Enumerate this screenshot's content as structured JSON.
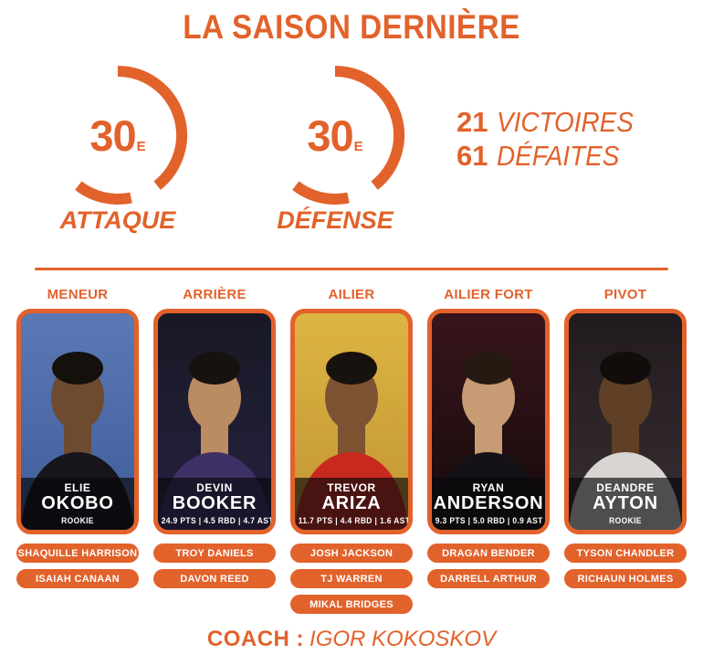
{
  "theme": {
    "orange": "#e2622b",
    "text_on_dark": "#ffffff",
    "band_overlay": "rgba(8,8,11,0.66)"
  },
  "title": "LA SAISON DERNIÈRE",
  "gauges": [
    {
      "value": "30",
      "suffix": "E",
      "label": "ATTAQUE"
    },
    {
      "value": "30",
      "suffix": "E",
      "label": "DÉFENSE"
    }
  ],
  "record": [
    {
      "number": "21",
      "label": "VICTOIRES"
    },
    {
      "number": "61",
      "label": "DÉFAITES"
    }
  ],
  "positions": [
    {
      "label": "MENEUR",
      "starter": {
        "first_name": "ELIE",
        "last_name": "OKOBO",
        "detail": "ROOKIE"
      },
      "backups": [
        "SHAQUILLE HARRISON",
        "ISAIAH CANAAN"
      ],
      "photo": {
        "bg_top": "#5b79b4",
        "bg_bottom": "#3f5c99",
        "shirt": "#16151c",
        "skin": "#6e4a31",
        "hair": "#14100c"
      }
    },
    {
      "label": "ARRIÈRE",
      "starter": {
        "first_name": "DEVIN",
        "last_name": "BOOKER",
        "detail": "24.9 PTS | 4.5 RBD | 4.7 AST"
      },
      "backups": [
        "TROY DANIELS",
        "DAVON REED"
      ],
      "photo": {
        "bg_top": "#181824",
        "bg_bottom": "#262140",
        "shirt": "#3d3166",
        "skin": "#bb8b61",
        "hair": "#17120e"
      }
    },
    {
      "label": "AILIER",
      "starter": {
        "first_name": "TREVOR",
        "last_name": "ARIZA",
        "detail": "11.7 PTS | 4.4 RBD | 1.6 AST"
      },
      "backups": [
        "JOSH JACKSON",
        "TJ WARREN",
        "MIKAL BRIDGES"
      ],
      "photo": {
        "bg_top": "#ddb542",
        "bg_bottom": "#c09434",
        "shirt": "#c8291f",
        "skin": "#7d5233",
        "hair": "#17120e"
      }
    },
    {
      "label": "AILIER FORT",
      "starter": {
        "first_name": "RYAN",
        "last_name": "ANDERSON",
        "detail": "9.3 PTS | 5.0 RBD | 0.9 AST"
      },
      "backups": [
        "DRAGAN BENDER",
        "DARRELL ARTHUR"
      ],
      "photo": {
        "bg_top": "#38151a",
        "bg_bottom": "#150a0c",
        "shirt": "#141216",
        "skin": "#c79b74",
        "hair": "#241a12"
      }
    },
    {
      "label": "PIVOT",
      "starter": {
        "first_name": "DEANDRE",
        "last_name": "AYTON",
        "detail": "ROOKIE"
      },
      "backups": [
        "TYSON CHANDLER",
        "RICHAUN HOLMES"
      ],
      "photo": {
        "bg_top": "#221b1e",
        "bg_bottom": "#382e33",
        "shirt": "#d9d5d2",
        "skin": "#5f4026",
        "hair": "#120d0a"
      }
    }
  ],
  "coach": {
    "prefix": "COACH :",
    "name": "IGOR KOKOSKOV"
  }
}
